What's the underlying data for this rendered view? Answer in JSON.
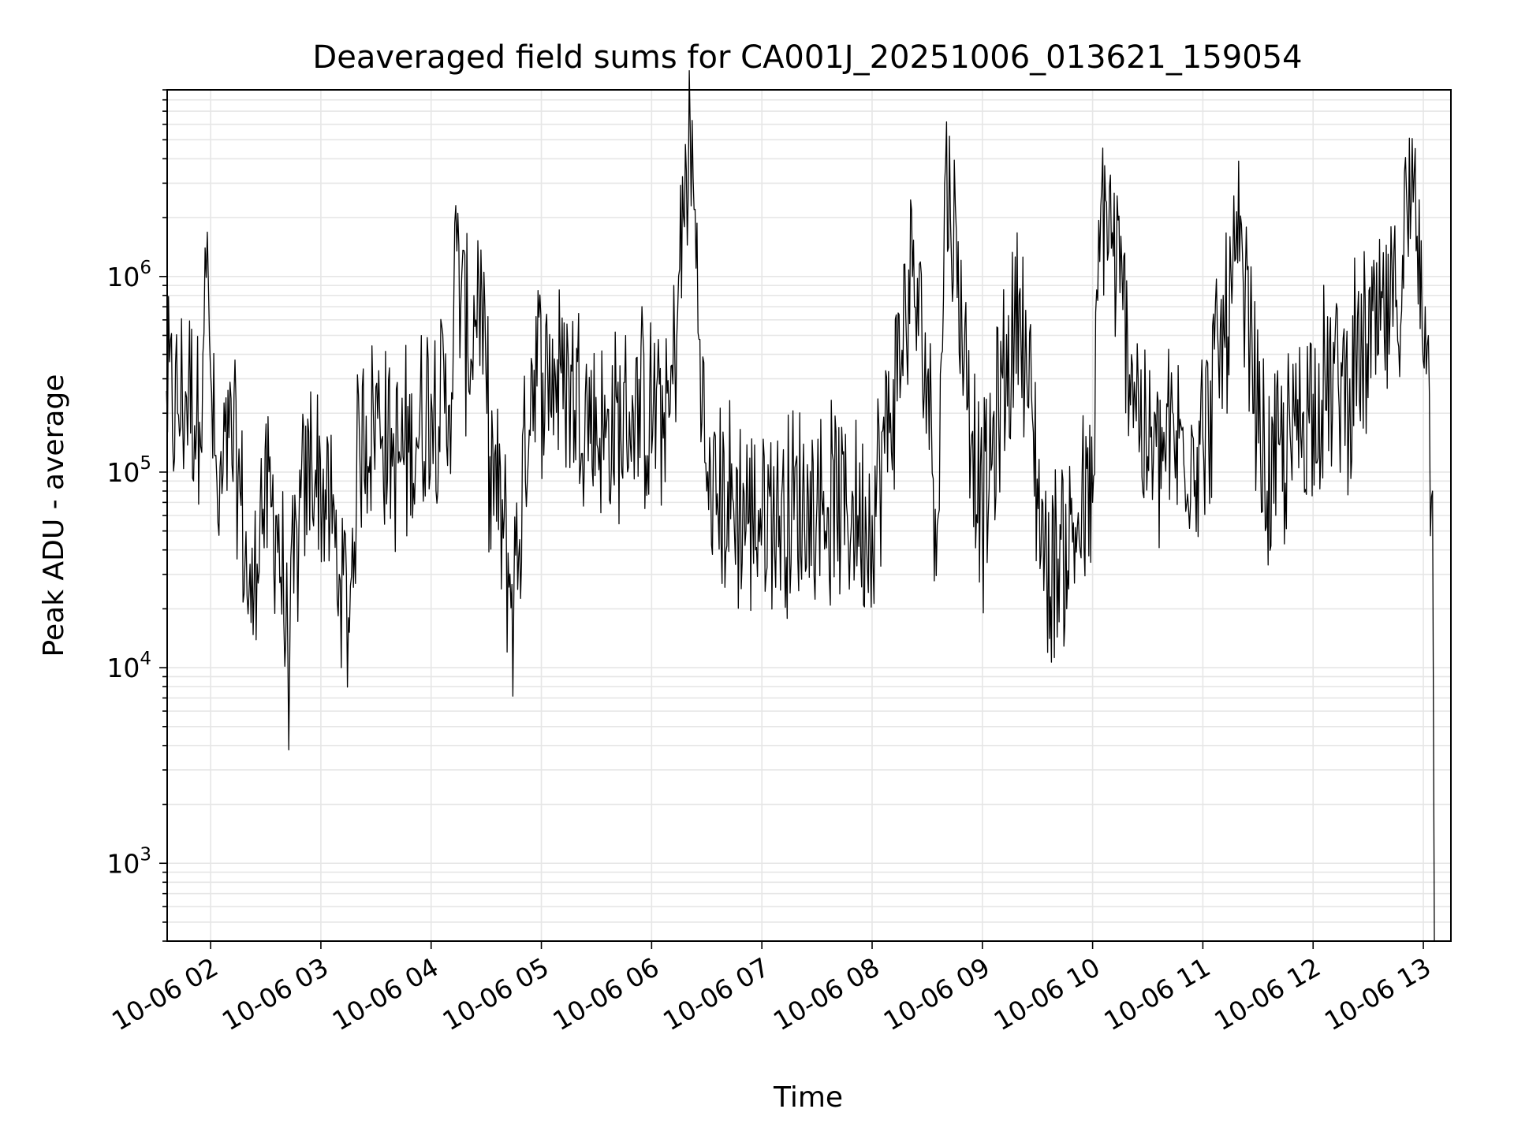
{
  "chart_data": {
    "type": "line",
    "title": "Deaveraged field sums for CA001J_20251006_013621_159054",
    "xlabel": "Time",
    "ylabel": "Peak ADU - average",
    "y_scale": "log",
    "ylim": [
      400,
      9000000
    ],
    "xlim": [
      "2025-10-06 01:36:21",
      "2025-10-06 13:15:00"
    ],
    "grid": true,
    "legend": "none",
    "line_color": "#000000",
    "x_ticks": [
      {
        "label": "10-06 02",
        "t": "2025-10-06 02:00"
      },
      {
        "label": "10-06 03",
        "t": "2025-10-06 03:00"
      },
      {
        "label": "10-06 04",
        "t": "2025-10-06 04:00"
      },
      {
        "label": "10-06 05",
        "t": "2025-10-06 05:00"
      },
      {
        "label": "10-06 06",
        "t": "2025-10-06 06:00"
      },
      {
        "label": "10-06 07",
        "t": "2025-10-06 07:00"
      },
      {
        "label": "10-06 08",
        "t": "2025-10-06 08:00"
      },
      {
        "label": "10-06 09",
        "t": "2025-10-06 09:00"
      },
      {
        "label": "10-06 10",
        "t": "2025-10-06 10:00"
      },
      {
        "label": "10-06 11",
        "t": "2025-10-06 11:00"
      },
      {
        "label": "10-06 12",
        "t": "2025-10-06 12:00"
      },
      {
        "label": "10-06 13",
        "t": "2025-10-06 13:00"
      }
    ],
    "y_ticks": [
      {
        "base": "10",
        "exp": "3",
        "value": 1000
      },
      {
        "base": "10",
        "exp": "4",
        "value": 10000
      },
      {
        "base": "10",
        "exp": "5",
        "value": 100000
      },
      {
        "base": "10",
        "exp": "6",
        "value": 1000000
      }
    ],
    "series": [
      {
        "points": [
          [
            "2025-10-06 01:36",
            260000
          ],
          [
            "2025-10-06 01:42",
            200000
          ],
          [
            "2025-10-06 01:48",
            280000
          ],
          [
            "2025-10-06 01:54",
            180000
          ],
          [
            "2025-10-06 01:57",
            1400000
          ],
          [
            "2025-10-06 02:00",
            320000
          ],
          [
            "2025-10-06 02:04",
            55000
          ],
          [
            "2025-10-06 02:10",
            150000
          ],
          [
            "2025-10-06 02:16",
            80000
          ],
          [
            "2025-10-06 02:22",
            17000
          ],
          [
            "2025-10-06 02:27",
            70000
          ],
          [
            "2025-10-06 02:36",
            60000
          ],
          [
            "2025-10-06 02:42",
            12000
          ],
          [
            "2025-10-06 02:48",
            50000
          ],
          [
            "2025-10-06 02:55",
            120000
          ],
          [
            "2025-10-06 03:05",
            60000
          ],
          [
            "2025-10-06 03:10",
            30000
          ],
          [
            "2025-10-06 03:15",
            18000
          ],
          [
            "2025-10-06 03:21",
            150000
          ],
          [
            "2025-10-06 03:32",
            200000
          ],
          [
            "2025-10-06 03:40",
            110000
          ],
          [
            "2025-10-06 03:52",
            150000
          ],
          [
            "2025-10-06 04:00",
            250000
          ],
          [
            "2025-10-06 04:10",
            220000
          ],
          [
            "2025-10-06 04:14",
            1350000
          ],
          [
            "2025-10-06 04:20",
            400000
          ],
          [
            "2025-10-06 04:26",
            900000
          ],
          [
            "2025-10-06 04:32",
            120000
          ],
          [
            "2025-10-06 04:45",
            22000
          ],
          [
            "2025-10-06 04:55",
            350000
          ],
          [
            "2025-10-06 05:15",
            300000
          ],
          [
            "2025-10-06 05:35",
            150000
          ],
          [
            "2025-10-06 05:50",
            200000
          ],
          [
            "2025-10-06 06:10",
            200000
          ],
          [
            "2025-10-06 06:21",
            5800000
          ],
          [
            "2025-10-06 06:30",
            80000
          ],
          [
            "2025-10-06 06:55",
            60000
          ],
          [
            "2025-10-06 07:30",
            70000
          ],
          [
            "2025-10-06 08:00",
            60000
          ],
          [
            "2025-10-06 08:10",
            200000
          ],
          [
            "2025-10-06 08:22",
            1000000
          ],
          [
            "2025-10-06 08:30",
            300000
          ],
          [
            "2025-10-06 08:36",
            60000
          ],
          [
            "2025-10-06 08:40",
            3800000
          ],
          [
            "2025-10-06 09:00",
            60000
          ],
          [
            "2025-10-06 09:20",
            800000
          ],
          [
            "2025-10-06 09:35",
            30000
          ],
          [
            "2025-10-06 10:00",
            70000
          ],
          [
            "2025-10-06 10:05",
            2900000
          ],
          [
            "2025-10-06 10:30",
            120000
          ],
          [
            "2025-10-06 11:00",
            150000
          ],
          [
            "2025-10-06 11:20",
            1200000
          ],
          [
            "2025-10-06 11:35",
            80000
          ],
          [
            "2025-10-06 12:00",
            250000
          ],
          [
            "2025-10-06 12:20",
            300000
          ],
          [
            "2025-10-06 12:45",
            700000
          ],
          [
            "2025-10-06 12:55",
            3300000
          ],
          [
            "2025-10-06 13:01",
            700000
          ],
          [
            "2025-10-06 13:05",
            80000
          ],
          [
            "2025-10-06 13:06",
            400
          ]
        ]
      }
    ]
  }
}
